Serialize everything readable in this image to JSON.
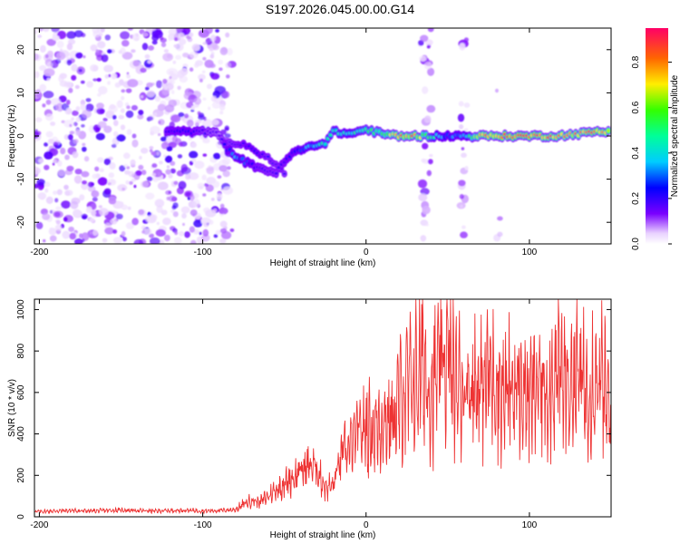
{
  "title": "S197.2026.045.00.00.G14",
  "chart_data": [
    {
      "type": "heatmap",
      "name": "spectrogram",
      "xlabel": "Height of straight line (km)",
      "ylabel": "Frequency (Hz)",
      "xlim": [
        -203,
        150
      ],
      "ylim": [
        -25,
        25
      ],
      "xticks": [
        -200,
        -100,
        0,
        100
      ],
      "xtick_labels": [
        "-200",
        "-100",
        "0",
        "100"
      ],
      "yticks": [
        -20,
        -10,
        0,
        10,
        20
      ],
      "ytick_labels": [
        "-20",
        "-10",
        "0",
        "10",
        "20"
      ],
      "colorbar": {
        "label": "Normalized spectral amplitude",
        "range": [
          0,
          0.95
        ],
        "ticks": [
          0.0,
          0.2,
          0.4,
          0.6,
          0.8
        ],
        "tick_labels": [
          "0.0",
          "0.2",
          "0.4",
          "0.6",
          "0.8"
        ]
      },
      "noise_regions": [
        {
          "x": [
            -203,
            -82
          ],
          "y": [
            -25,
            25
          ],
          "amplitude": 0.15
        },
        {
          "x": [
            33,
            40
          ],
          "y": [
            -25,
            25
          ],
          "amplitude": 0.12
        },
        {
          "x": [
            58,
            62
          ],
          "y": [
            -25,
            25
          ],
          "amplitude": 0.12
        },
        {
          "x": [
            80,
            82
          ],
          "y": [
            -25,
            25
          ],
          "amplitude": 0.06
        }
      ],
      "ridge": [
        {
          "x": -122,
          "f": 1.0,
          "a": 0.22
        },
        {
          "x": -110,
          "f": 1.0,
          "a": 0.25
        },
        {
          "x": -100,
          "f": 1.0,
          "a": 0.2
        },
        {
          "x": -90,
          "f": 0.5,
          "a": 0.15
        },
        {
          "x": -85,
          "f": -3.0,
          "a": 0.25
        },
        {
          "x": -80,
          "f": -4.5,
          "a": 0.35
        },
        {
          "x": -74,
          "f": -6.0,
          "a": 0.3
        },
        {
          "x": -68,
          "f": -7.0,
          "a": 0.22
        },
        {
          "x": -60,
          "f": -8.0,
          "a": 0.2
        },
        {
          "x": -55,
          "f": -8.5,
          "a": 0.2
        },
        {
          "x": -50,
          "f": -6.0,
          "a": 0.22
        },
        {
          "x": -45,
          "f": -4.0,
          "a": 0.25
        },
        {
          "x": -38,
          "f": -3.0,
          "a": 0.35
        },
        {
          "x": -30,
          "f": -2.0,
          "a": 0.45
        },
        {
          "x": -25,
          "f": -1.5,
          "a": 0.5
        },
        {
          "x": -20,
          "f": 1.0,
          "a": 0.5
        },
        {
          "x": -10,
          "f": 0.5,
          "a": 0.45
        },
        {
          "x": 0,
          "f": 1.5,
          "a": 0.55
        },
        {
          "x": 10,
          "f": 0.5,
          "a": 0.6
        },
        {
          "x": 20,
          "f": 0.0,
          "a": 0.85
        },
        {
          "x": 30,
          "f": 0.0,
          "a": 0.85
        },
        {
          "x": 45,
          "f": 0.0,
          "a": 0.35
        },
        {
          "x": 60,
          "f": 0.0,
          "a": 0.35
        },
        {
          "x": 70,
          "f": 0.0,
          "a": 0.85
        },
        {
          "x": 85,
          "f": 0.0,
          "a": 0.9
        },
        {
          "x": 100,
          "f": 0.0,
          "a": 0.9
        },
        {
          "x": 115,
          "f": 0.0,
          "a": 0.85
        },
        {
          "x": 130,
          "f": 0.5,
          "a": 0.8
        },
        {
          "x": 140,
          "f": 1.0,
          "a": 0.9
        },
        {
          "x": 150,
          "f": 1.0,
          "a": 0.85
        }
      ],
      "secondary_ridge": [
        {
          "x": -85,
          "f": -1.5,
          "a": 0.18
        },
        {
          "x": -75,
          "f": -2.0,
          "a": 0.22
        },
        {
          "x": -68,
          "f": -3.5,
          "a": 0.25
        },
        {
          "x": -60,
          "f": -5.0,
          "a": 0.2
        },
        {
          "x": -52,
          "f": -8.0,
          "a": 0.2
        },
        {
          "x": -48,
          "f": -9.0,
          "a": 0.18
        }
      ]
    },
    {
      "type": "line",
      "name": "snr",
      "xlabel": "Height of straight line (km)",
      "ylabel": "SNR (10 * v/v)",
      "xlim": [
        -203,
        150
      ],
      "ylim": [
        0,
        1050
      ],
      "xticks": [
        -200,
        -100,
        0,
        100
      ],
      "xtick_labels": [
        "-200",
        "-100",
        "0",
        "100"
      ],
      "yticks": [
        0,
        200,
        400,
        600,
        800,
        1000
      ],
      "ytick_labels": [
        "0",
        "200",
        "400",
        "600",
        "800",
        "1000"
      ],
      "color": "#ee3333",
      "series": [
        {
          "name": "SNR",
          "x": [
            -203,
            -190,
            -180,
            -170,
            -160,
            -150,
            -140,
            -130,
            -120,
            -110,
            -100,
            -90,
            -80,
            -75,
            -70,
            -65,
            -60,
            -55,
            -50,
            -45,
            -40,
            -35,
            -30,
            -25,
            -20,
            -15,
            -10,
            -5,
            0,
            5,
            10,
            15,
            20,
            25,
            30,
            35,
            40,
            45,
            50,
            55,
            60,
            65,
            70,
            75,
            80,
            85,
            90,
            95,
            100,
            105,
            110,
            115,
            120,
            125,
            130,
            135,
            140,
            145,
            150
          ],
          "values": [
            25,
            28,
            30,
            28,
            30,
            32,
            30,
            28,
            30,
            32,
            28,
            30,
            35,
            60,
            80,
            70,
            100,
            130,
            160,
            190,
            220,
            250,
            230,
            140,
            150,
            300,
            330,
            400,
            430,
            420,
            470,
            460,
            540,
            620,
            660,
            720,
            620,
            700,
            780,
            620,
            640,
            650,
            620,
            690,
            660,
            580,
            620,
            620,
            560,
            640,
            610,
            680,
            660,
            640,
            690,
            600,
            700,
            640,
            450
          ]
        }
      ]
    }
  ]
}
